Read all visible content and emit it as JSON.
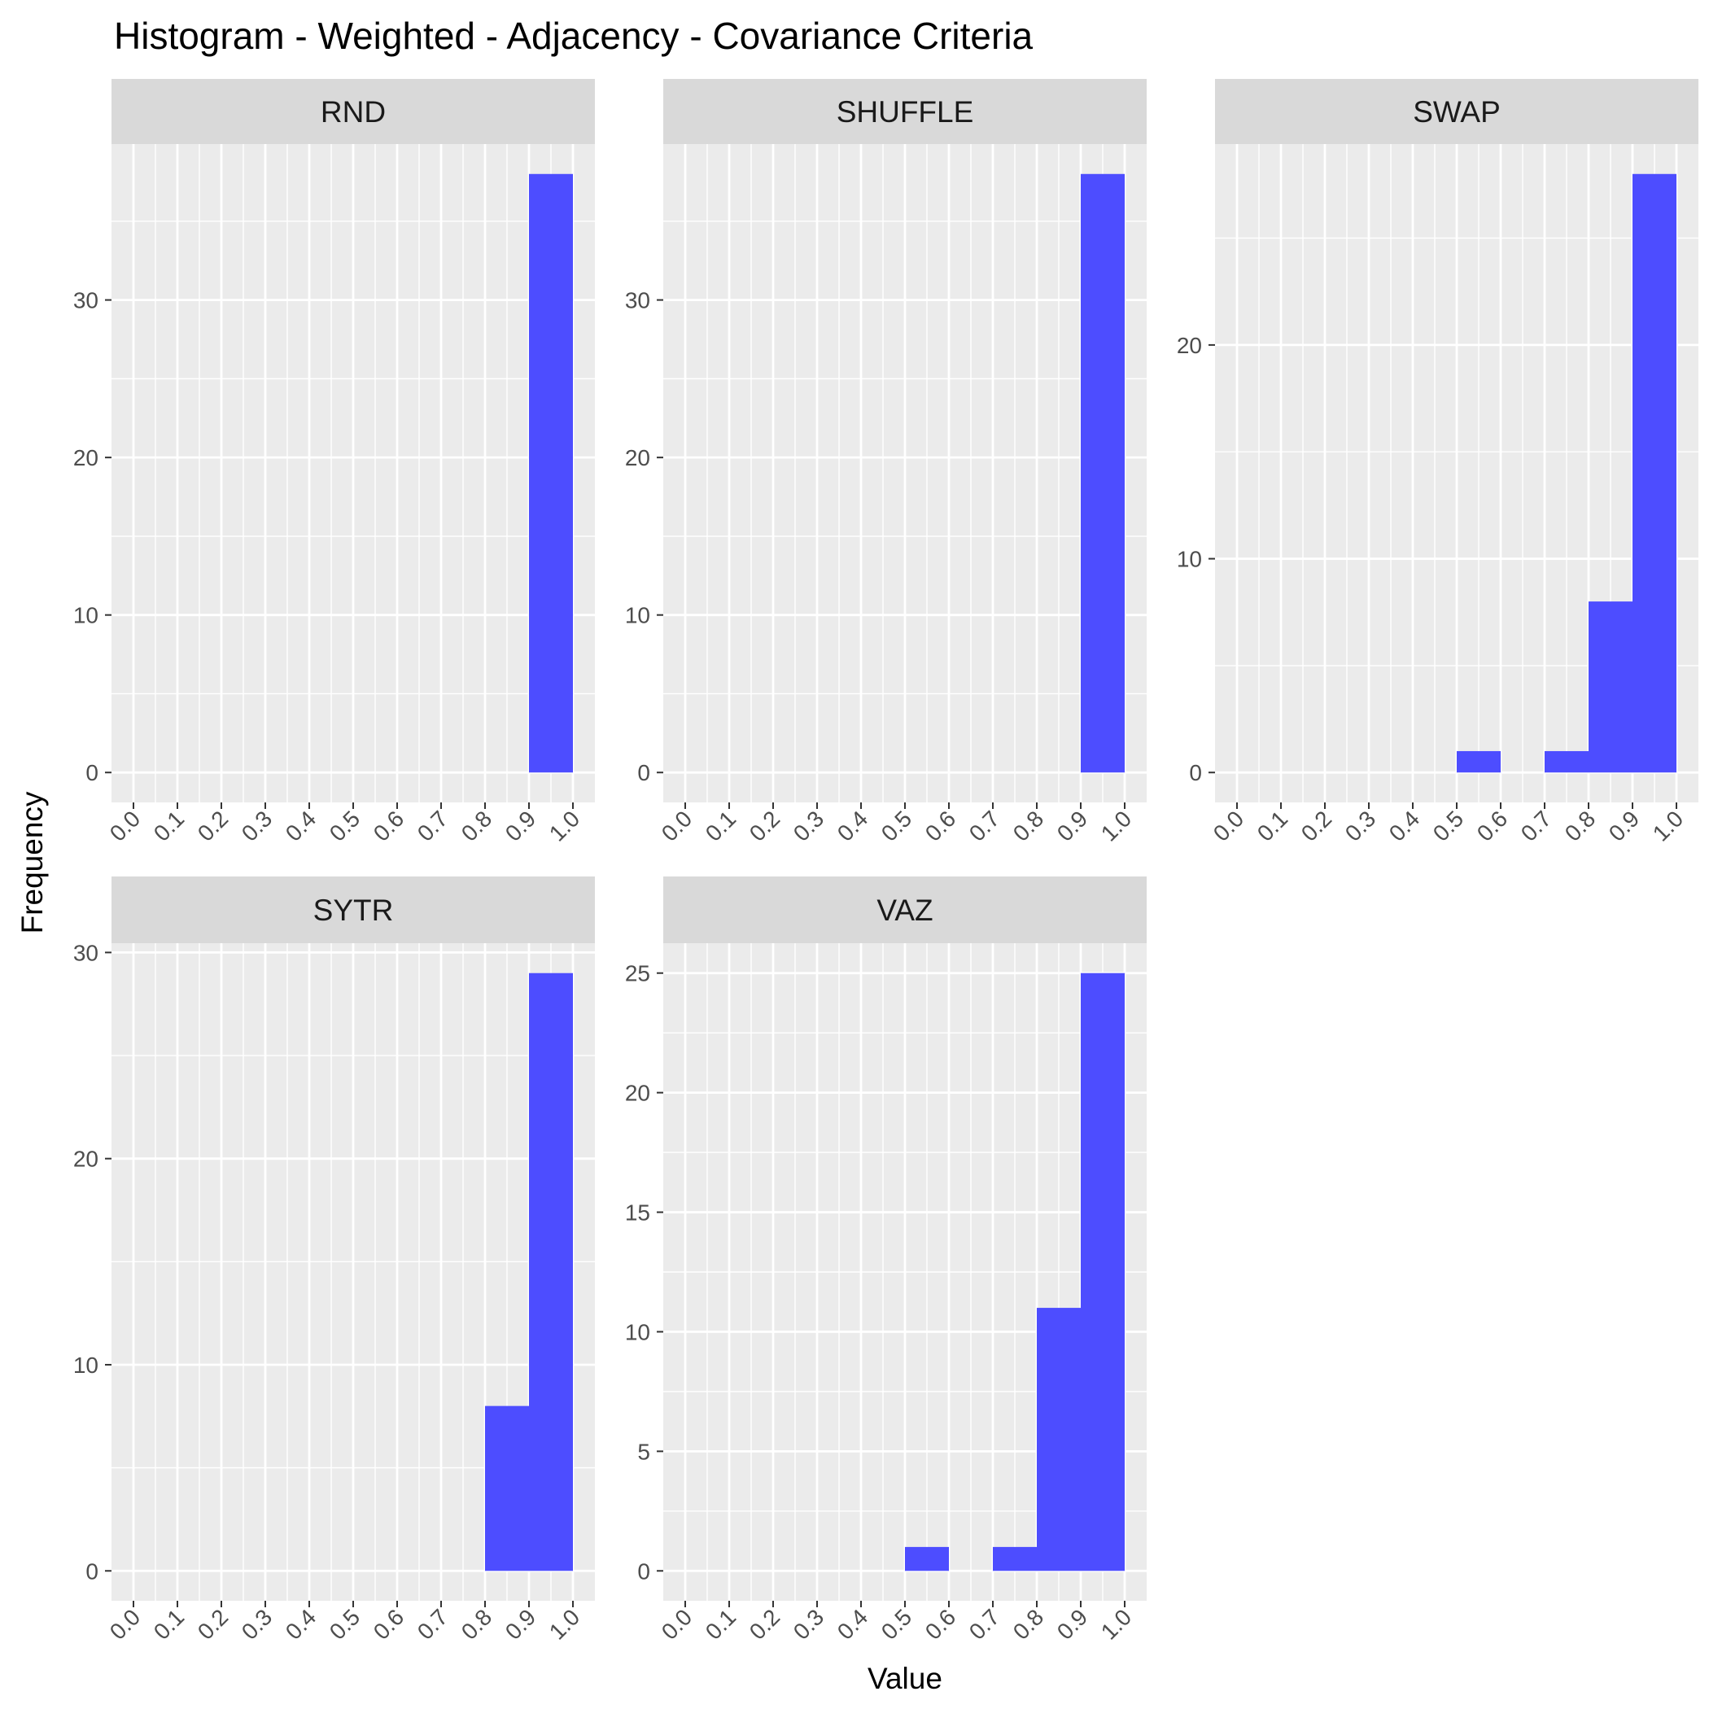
{
  "chart_data": {
    "type": "bar",
    "title": "Histogram - Weighted - Adjacency - Covariance Criteria",
    "xlabel": "Value",
    "ylabel": "Frequency",
    "grid": true,
    "bin_width": 0.1,
    "x_ticks": [
      "0.0",
      "0.1",
      "0.2",
      "0.3",
      "0.4",
      "0.5",
      "0.6",
      "0.7",
      "0.8",
      "0.9",
      "1.0"
    ],
    "xlim": [
      -0.05,
      1.05
    ],
    "colors": {
      "bar": "#4d4dff",
      "panel": "#ebebeb",
      "strip": "#d9d9d9",
      "grid": "#ffffff"
    },
    "panels": [
      {
        "name": "RND",
        "ylim": [
          -1.9,
          39.9
        ],
        "y_ticks": [
          0,
          10,
          20,
          30
        ],
        "y_tick_labels": [
          "0",
          "10",
          "20",
          "30"
        ],
        "bins": [
          {
            "x0": 0.9,
            "x1": 1.0,
            "count": 38
          }
        ]
      },
      {
        "name": "SHUFFLE",
        "ylim": [
          -1.9,
          39.9
        ],
        "y_ticks": [
          0,
          10,
          20,
          30
        ],
        "y_tick_labels": [
          "0",
          "10",
          "20",
          "30"
        ],
        "bins": [
          {
            "x0": 0.9,
            "x1": 1.0,
            "count": 38
          }
        ]
      },
      {
        "name": "SWAP",
        "ylim": [
          -1.4,
          29.4
        ],
        "y_ticks": [
          0,
          10,
          20
        ],
        "y_tick_labels": [
          "0",
          "10",
          "20"
        ],
        "bins": [
          {
            "x0": 0.5,
            "x1": 0.6,
            "count": 1
          },
          {
            "x0": 0.7,
            "x1": 0.8,
            "count": 1
          },
          {
            "x0": 0.8,
            "x1": 0.9,
            "count": 8
          },
          {
            "x0": 0.9,
            "x1": 1.0,
            "count": 28
          }
        ]
      },
      {
        "name": "SYTR",
        "ylim": [
          -1.45,
          30.45
        ],
        "y_ticks": [
          0,
          10,
          20,
          30
        ],
        "y_tick_labels": [
          "0",
          "10",
          "20",
          "30"
        ],
        "bins": [
          {
            "x0": 0.8,
            "x1": 0.9,
            "count": 8
          },
          {
            "x0": 0.9,
            "x1": 1.0,
            "count": 29
          }
        ]
      },
      {
        "name": "VAZ",
        "ylim": [
          -1.25,
          26.25
        ],
        "y_ticks": [
          0,
          5,
          10,
          15,
          20,
          25
        ],
        "y_tick_labels": [
          "0",
          "5",
          "10",
          "15",
          "20",
          "25"
        ],
        "bins": [
          {
            "x0": 0.5,
            "x1": 0.6,
            "count": 1
          },
          {
            "x0": 0.7,
            "x1": 0.8,
            "count": 1
          },
          {
            "x0": 0.8,
            "x1": 0.9,
            "count": 11
          },
          {
            "x0": 0.9,
            "x1": 1.0,
            "count": 25
          }
        ]
      }
    ]
  }
}
